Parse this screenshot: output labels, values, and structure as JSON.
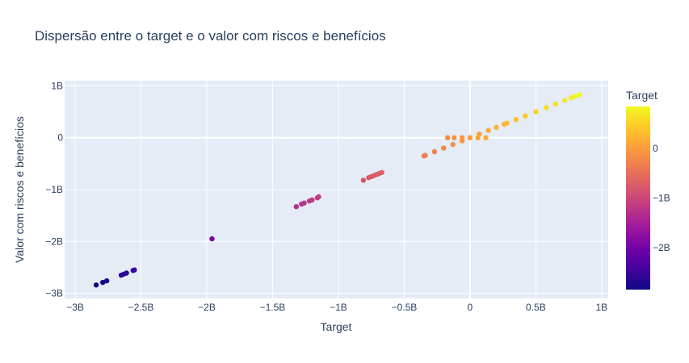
{
  "chart_data": {
    "type": "scatter",
    "title": "Dispersão entre o target e o valor com riscos e benefícios",
    "xlabel": "Target",
    "ylabel": "Valor com riscos e benefícios",
    "xlim": [
      -3.08,
      1.05
    ],
    "ylim": [
      -3.1,
      1.1
    ],
    "grid": true,
    "x_ticks": [
      {
        "value": -3,
        "label": "−3B"
      },
      {
        "value": -2.5,
        "label": "−2.5B"
      },
      {
        "value": -2,
        "label": "−2B"
      },
      {
        "value": -1.5,
        "label": "−1.5B"
      },
      {
        "value": -1,
        "label": "−1B"
      },
      {
        "value": -0.5,
        "label": "−0.5B"
      },
      {
        "value": 0,
        "label": "0"
      },
      {
        "value": 0.5,
        "label": "0.5B"
      },
      {
        "value": 1,
        "label": "1B"
      }
    ],
    "y_ticks": [
      {
        "value": 1,
        "label": "1B"
      },
      {
        "value": 0,
        "label": "0"
      },
      {
        "value": -1,
        "label": "−1B"
      },
      {
        "value": -2,
        "label": "−2B"
      },
      {
        "value": -3,
        "label": "−3B"
      }
    ],
    "colorbar": {
      "title": "Target",
      "range": [
        -2.85,
        0.85
      ],
      "ticks": [
        {
          "value": 0,
          "label": "0"
        },
        {
          "value": -1,
          "label": "−1B"
        },
        {
          "value": -2,
          "label": "−2B"
        }
      ],
      "colorscale": [
        "#0d0887",
        "#46039f",
        "#7201a8",
        "#9c179e",
        "#bd3786",
        "#d8576b",
        "#ed7953",
        "#fb9f3a",
        "#fdca26",
        "#f0f921"
      ]
    },
    "clusters": [
      {
        "x": [
          -2.84,
          -2.79,
          -2.76,
          -2.65,
          -2.63,
          -2.61,
          -2.56,
          -2.55
        ],
        "y": [
          -2.84,
          -2.79,
          -2.76,
          -2.65,
          -2.63,
          -2.61,
          -2.56,
          -2.55
        ]
      },
      {
        "x": [
          -1.96
        ],
        "y": [
          -1.95
        ]
      },
      {
        "x": [
          -1.32,
          -1.28,
          -1.26,
          -1.22,
          -1.2,
          -1.16,
          -1.15
        ],
        "y": [
          -1.33,
          -1.28,
          -1.26,
          -1.22,
          -1.2,
          -1.16,
          -1.14
        ]
      },
      {
        "x": [
          -0.81,
          -0.77,
          -0.75,
          -0.73,
          -0.71,
          -0.69,
          -0.67
        ],
        "y": [
          -0.82,
          -0.77,
          -0.75,
          -0.73,
          -0.71,
          -0.69,
          -0.67
        ]
      },
      {
        "x": [
          -0.35,
          -0.34
        ],
        "y": [
          -0.35,
          -0.34
        ]
      },
      {
        "x": [
          -0.27,
          -0.2,
          -0.13,
          -0.06,
          0.0,
          0.07,
          0.14,
          0.2,
          0.26,
          0.28
        ],
        "y": [
          -0.27,
          -0.2,
          -0.13,
          -0.06,
          0.0,
          0.07,
          0.14,
          0.2,
          0.26,
          0.28
        ]
      },
      {
        "x": [
          -0.17,
          -0.12,
          -0.06,
          0.0,
          0.06,
          0.12
        ],
        "y": [
          0.0,
          0.0,
          0.0,
          0.0,
          0.0,
          0.0
        ]
      },
      {
        "x": [
          0.35,
          0.42,
          0.5,
          0.58,
          0.65,
          0.72
        ],
        "y": [
          0.35,
          0.42,
          0.5,
          0.58,
          0.65,
          0.72
        ]
      },
      {
        "x": [
          0.77,
          0.8,
          0.83
        ],
        "y": [
          0.77,
          0.8,
          0.83
        ]
      }
    ]
  }
}
